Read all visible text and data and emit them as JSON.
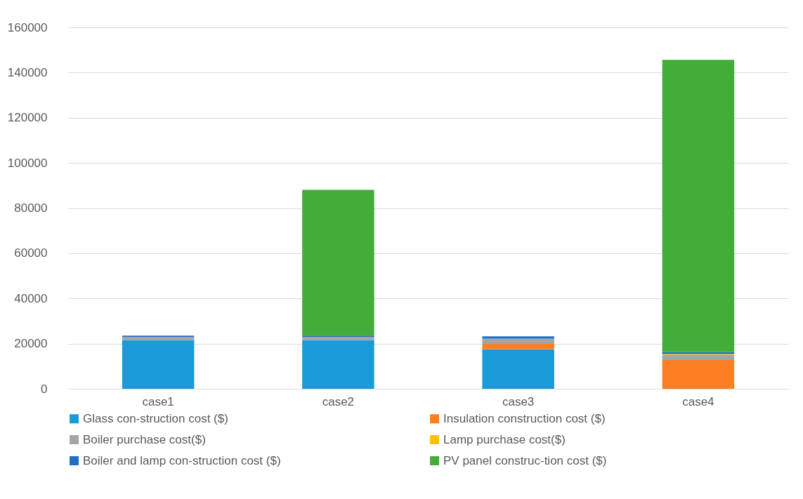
{
  "chart_data": {
    "type": "bar",
    "stacked": true,
    "categories": [
      "case1",
      "case2",
      "case3",
      "case4"
    ],
    "series": [
      {
        "name": "Glass con-struction cost ($)",
        "color": "#1a9bd7",
        "values": [
          21600,
          21600,
          17500,
          0
        ]
      },
      {
        "name": "Insulation construction cost ($)",
        "color": "#fd7f23",
        "values": [
          0,
          0,
          2400,
          12700
        ]
      },
      {
        "name": "Boiler purchase cost($)",
        "color": "#a5a5a5",
        "values": [
          1400,
          1400,
          2300,
          2300
        ]
      },
      {
        "name": "Lamp purchase cost($)",
        "color": "#ffc000",
        "values": [
          0,
          0,
          0,
          400
        ]
      },
      {
        "name": "Boiler and lamp con-struction cost ($)",
        "color": "#1f6fc4",
        "values": [
          500,
          500,
          1000,
          800
        ]
      },
      {
        "name": "PV panel construc-tion cost ($)",
        "color": "#43ad3a",
        "values": [
          0,
          64600,
          0,
          129400
        ]
      }
    ],
    "ylim": [
      0,
      160000
    ],
    "yticks": [
      0,
      20000,
      40000,
      60000,
      80000,
      100000,
      120000,
      140000,
      160000
    ],
    "grid": "y",
    "legend": "bottom"
  }
}
